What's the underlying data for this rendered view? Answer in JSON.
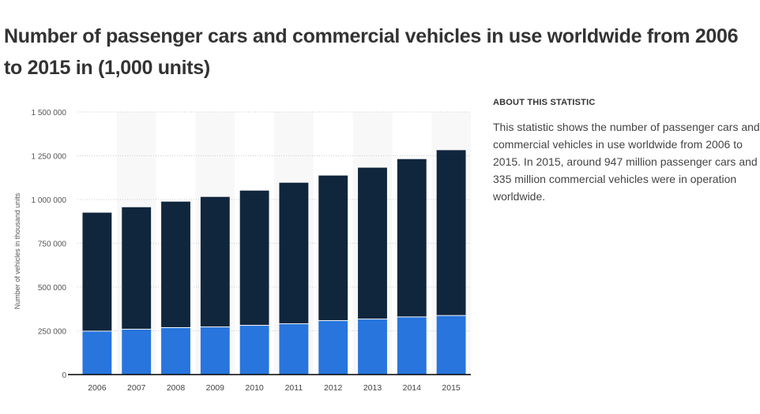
{
  "title": "Number of passenger cars and commercial vehicles in use worldwide from 2006 to 2015 in (1,000 units)",
  "about": {
    "heading": "ABOUT THIS STATISTIC",
    "lines": [
      "This statistic shows the number of passenger cars and",
      "commercial vehicles in use worldwide from 2006 to",
      "2015. In 2015, around 947 million passenger cars and",
      "335 million commercial vehicles were in operation",
      "worldwide."
    ]
  },
  "colors": {
    "passenger": "#10263d",
    "commercial": "#2775dd"
  },
  "chart_data": {
    "type": "bar",
    "stacked": true,
    "categories": [
      "2006",
      "2007",
      "2008",
      "2009",
      "2010",
      "2011",
      "2012",
      "2013",
      "2014",
      "2015"
    ],
    "series": [
      {
        "key": "commercial",
        "values": [
          246,
          257,
          266,
          270,
          279,
          288,
          306,
          315,
          327,
          335
        ]
      },
      {
        "key": "passenger",
        "values": [
          679,
          699,
          722,
          745,
          772,
          808,
          831,
          867,
          904,
          947
        ]
      }
    ],
    "unit_multiplier": 1000,
    "ylabel": "Number of vehicles in thousand units",
    "ylim": [
      0,
      1500000
    ],
    "yticks": [
      "0",
      "250 000",
      "500 000",
      "750 000",
      "1 000 000",
      "1 250 000",
      "1 500 000"
    ],
    "grid": true
  }
}
